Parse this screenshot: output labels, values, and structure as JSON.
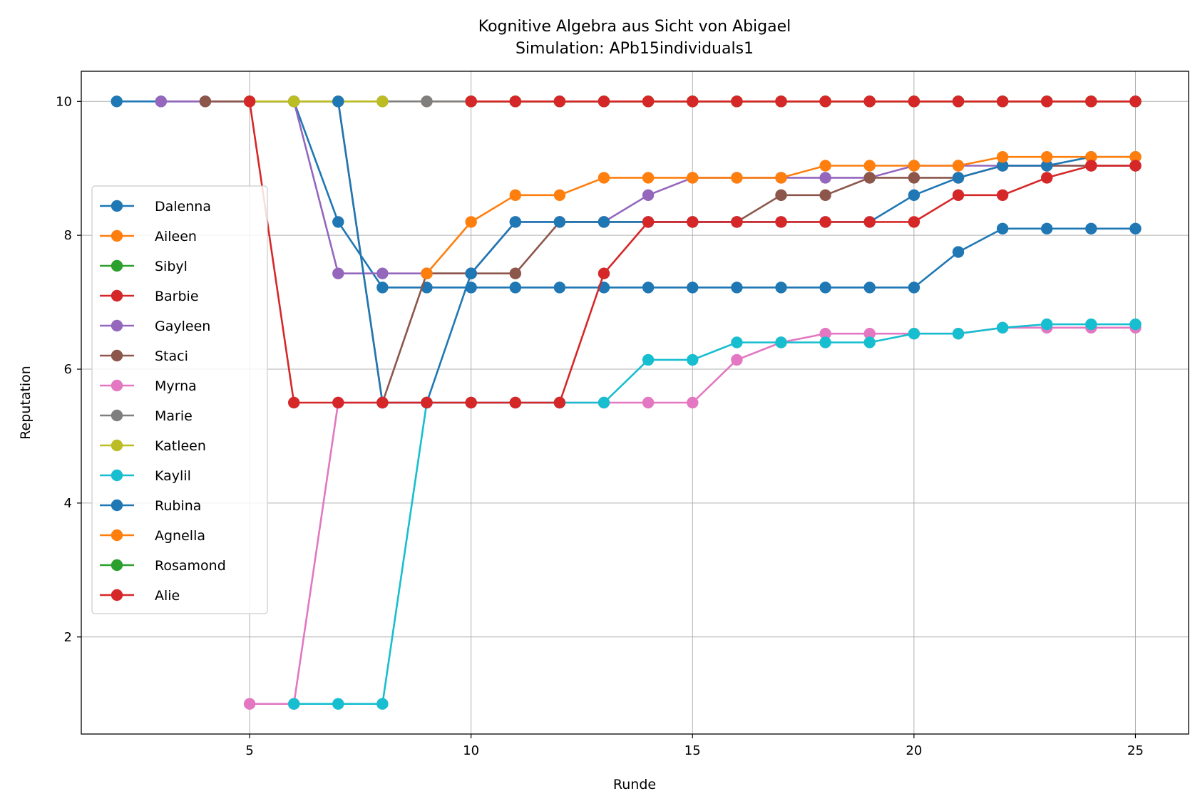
{
  "chart_data": {
    "type": "line",
    "title": "Kognitive Algebra aus Sicht von Abigael",
    "subtitle": "Simulation: APb15individuals1",
    "xlabel": "Runde",
    "ylabel": "Reputation",
    "xlim": [
      1.2,
      26.2
    ],
    "ylim": [
      0.55,
      10.45
    ],
    "xticks": [
      5,
      10,
      15,
      20,
      25
    ],
    "yticks": [
      2,
      4,
      6,
      8,
      10
    ],
    "grid": true,
    "legend_position": "center-left",
    "series": [
      {
        "name": "Dalenna",
        "color": "#1f77b4",
        "points": [
          [
            2,
            10
          ],
          [
            3,
            10
          ],
          [
            4,
            10
          ],
          [
            5,
            10
          ],
          [
            6,
            10
          ],
          [
            7,
            8.2
          ],
          [
            8,
            7.22
          ],
          [
            9,
            7.22
          ],
          [
            10,
            7.22
          ],
          [
            11,
            7.22
          ],
          [
            12,
            7.22
          ],
          [
            13,
            7.22
          ],
          [
            14,
            7.22
          ],
          [
            15,
            7.22
          ],
          [
            16,
            7.22
          ],
          [
            17,
            7.22
          ],
          [
            18,
            7.22
          ],
          [
            19,
            7.22
          ],
          [
            20,
            7.22
          ],
          [
            21,
            7.75
          ],
          [
            22,
            8.1
          ],
          [
            23,
            8.1
          ],
          [
            24,
            8.1
          ],
          [
            25,
            8.1
          ]
        ]
      },
      {
        "name": "Aileen",
        "color": "#ff7f0e",
        "points": [
          [
            9,
            10
          ],
          [
            10,
            10
          ],
          [
            11,
            10
          ],
          [
            12,
            10
          ],
          [
            13,
            10
          ],
          [
            14,
            10
          ],
          [
            15,
            10
          ],
          [
            16,
            10
          ],
          [
            17,
            10
          ],
          [
            18,
            10
          ],
          [
            19,
            10
          ],
          [
            20,
            10
          ],
          [
            21,
            10
          ],
          [
            22,
            10
          ],
          [
            23,
            10
          ],
          [
            24,
            10
          ],
          [
            25,
            10
          ]
        ]
      },
      {
        "name": "Sibyl",
        "color": "#2ca02c",
        "points": [
          [
            10,
            10
          ],
          [
            11,
            10
          ],
          [
            12,
            10
          ],
          [
            13,
            10
          ],
          [
            14,
            10
          ],
          [
            15,
            10
          ],
          [
            16,
            10
          ],
          [
            17,
            10
          ],
          [
            18,
            10
          ],
          [
            19,
            10
          ],
          [
            20,
            10
          ],
          [
            21,
            10
          ],
          [
            22,
            10
          ],
          [
            23,
            10
          ],
          [
            24,
            10
          ],
          [
            25,
            10
          ]
        ]
      },
      {
        "name": "Barbie",
        "color": "#d62728",
        "points": [
          [
            10,
            10
          ],
          [
            11,
            10
          ],
          [
            12,
            10
          ],
          [
            13,
            10
          ],
          [
            14,
            10
          ],
          [
            15,
            10
          ],
          [
            16,
            10
          ],
          [
            17,
            10
          ],
          [
            18,
            10
          ],
          [
            19,
            10
          ],
          [
            20,
            10
          ],
          [
            21,
            10
          ],
          [
            22,
            10
          ],
          [
            23,
            10
          ],
          [
            24,
            10
          ],
          [
            25,
            10
          ]
        ]
      },
      {
        "name": "Gayleen",
        "color": "#9467bd",
        "points": [
          [
            3,
            10
          ],
          [
            4,
            10
          ],
          [
            5,
            10
          ],
          [
            6,
            10
          ],
          [
            7,
            7.43
          ],
          [
            8,
            7.43
          ],
          [
            9,
            7.43
          ],
          [
            10,
            7.43
          ],
          [
            11,
            8.2
          ],
          [
            12,
            8.2
          ],
          [
            13,
            8.2
          ],
          [
            14,
            8.6
          ],
          [
            15,
            8.86
          ],
          [
            16,
            8.86
          ],
          [
            17,
            8.86
          ],
          [
            18,
            8.86
          ],
          [
            19,
            8.86
          ],
          [
            20,
            9.04
          ],
          [
            21,
            9.04
          ],
          [
            22,
            9.04
          ],
          [
            23,
            9.04
          ],
          [
            24,
            9.04
          ],
          [
            25,
            9.04
          ]
        ]
      },
      {
        "name": "Staci",
        "color": "#8c564b",
        "points": [
          [
            4,
            10
          ],
          [
            5,
            10
          ],
          [
            6,
            10
          ],
          [
            7,
            10
          ],
          [
            8,
            5.5
          ],
          [
            9,
            7.43
          ],
          [
            10,
            7.43
          ],
          [
            11,
            7.43
          ],
          [
            12,
            8.2
          ],
          [
            13,
            8.2
          ],
          [
            14,
            8.2
          ],
          [
            15,
            8.2
          ],
          [
            16,
            8.2
          ],
          [
            17,
            8.6
          ],
          [
            18,
            8.6
          ],
          [
            19,
            8.86
          ],
          [
            20,
            8.86
          ],
          [
            21,
            8.86
          ],
          [
            22,
            9.04
          ],
          [
            23,
            9.04
          ],
          [
            24,
            9.04
          ],
          [
            25,
            9.04
          ]
        ]
      },
      {
        "name": "Myrna",
        "color": "#e377c2",
        "points": [
          [
            5,
            1
          ],
          [
            6,
            1
          ],
          [
            7,
            5.5
          ],
          [
            8,
            5.5
          ],
          [
            9,
            5.5
          ],
          [
            10,
            5.5
          ],
          [
            11,
            5.5
          ],
          [
            12,
            5.5
          ],
          [
            13,
            5.5
          ],
          [
            14,
            5.5
          ],
          [
            15,
            5.5
          ],
          [
            16,
            6.14
          ],
          [
            17,
            6.4
          ],
          [
            18,
            6.53
          ],
          [
            19,
            6.53
          ],
          [
            20,
            6.53
          ],
          [
            21,
            6.53
          ],
          [
            22,
            6.62
          ],
          [
            23,
            6.62
          ],
          [
            24,
            6.62
          ],
          [
            25,
            6.62
          ]
        ]
      },
      {
        "name": "Marie",
        "color": "#7f7f7f",
        "points": [
          [
            6,
            10
          ],
          [
            7,
            10
          ],
          [
            8,
            10
          ],
          [
            9,
            10
          ],
          [
            10,
            10
          ],
          [
            11,
            10
          ],
          [
            12,
            10
          ],
          [
            13,
            10
          ],
          [
            14,
            10
          ],
          [
            15,
            10
          ],
          [
            16,
            10
          ],
          [
            17,
            10
          ],
          [
            18,
            10
          ],
          [
            19,
            10
          ],
          [
            20,
            10
          ],
          [
            21,
            10
          ],
          [
            22,
            10
          ],
          [
            23,
            10
          ],
          [
            24,
            10
          ],
          [
            25,
            10
          ]
        ]
      },
      {
        "name": "Katleen",
        "color": "#bcbd22",
        "points": [
          [
            5,
            10
          ],
          [
            6,
            10
          ],
          [
            7,
            10
          ],
          [
            8,
            10
          ]
        ]
      },
      {
        "name": "Kaylil",
        "color": "#17becf",
        "points": [
          [
            6,
            1
          ],
          [
            7,
            1
          ],
          [
            8,
            1
          ],
          [
            9,
            5.5
          ],
          [
            10,
            5.5
          ],
          [
            11,
            5.5
          ],
          [
            12,
            5.5
          ],
          [
            13,
            5.5
          ],
          [
            14,
            6.14
          ],
          [
            15,
            6.14
          ],
          [
            16,
            6.4
          ],
          [
            17,
            6.4
          ],
          [
            18,
            6.4
          ],
          [
            19,
            6.4
          ],
          [
            20,
            6.53
          ],
          [
            21,
            6.53
          ],
          [
            22,
            6.62
          ],
          [
            23,
            6.67
          ],
          [
            24,
            6.67
          ],
          [
            25,
            6.67
          ]
        ]
      },
      {
        "name": "Rubina",
        "color": "#1f77b4",
        "points": [
          [
            7,
            10
          ],
          [
            8,
            5.5
          ],
          [
            9,
            5.5
          ],
          [
            10,
            7.43
          ],
          [
            11,
            8.2
          ],
          [
            12,
            8.2
          ],
          [
            13,
            8.2
          ],
          [
            14,
            8.2
          ],
          [
            15,
            8.2
          ],
          [
            16,
            8.2
          ],
          [
            17,
            8.2
          ],
          [
            18,
            8.2
          ],
          [
            19,
            8.2
          ],
          [
            20,
            8.6
          ],
          [
            21,
            8.86
          ],
          [
            22,
            9.04
          ],
          [
            23,
            9.04
          ],
          [
            24,
            9.17
          ],
          [
            25,
            9.17
          ]
        ]
      },
      {
        "name": "Agnella",
        "color": "#ff7f0e",
        "points": [
          [
            9,
            7.43
          ],
          [
            10,
            8.2
          ],
          [
            11,
            8.6
          ],
          [
            12,
            8.6
          ],
          [
            13,
            8.86
          ],
          [
            14,
            8.86
          ],
          [
            15,
            8.86
          ],
          [
            16,
            8.86
          ],
          [
            17,
            8.86
          ],
          [
            18,
            9.04
          ],
          [
            19,
            9.04
          ],
          [
            20,
            9.04
          ],
          [
            21,
            9.04
          ],
          [
            22,
            9.17
          ],
          [
            23,
            9.17
          ],
          [
            24,
            9.17
          ],
          [
            25,
            9.17
          ]
        ]
      },
      {
        "name": "Rosamond",
        "color": "#2ca02c",
        "points": [
          [
            10,
            10
          ],
          [
            11,
            10
          ],
          [
            12,
            10
          ],
          [
            13,
            10
          ],
          [
            14,
            10
          ],
          [
            15,
            10
          ],
          [
            16,
            10
          ],
          [
            17,
            10
          ],
          [
            18,
            10
          ],
          [
            19,
            10
          ],
          [
            20,
            10
          ],
          [
            21,
            10
          ],
          [
            22,
            10
          ],
          [
            23,
            10
          ],
          [
            24,
            10
          ],
          [
            25,
            10
          ]
        ]
      },
      {
        "name": "Alie",
        "color": "#d62728",
        "points": [
          [
            5,
            10
          ],
          [
            6,
            5.5
          ],
          [
            7,
            5.5
          ],
          [
            8,
            5.5
          ],
          [
            9,
            5.5
          ],
          [
            10,
            5.5
          ],
          [
            11,
            5.5
          ],
          [
            12,
            5.5
          ],
          [
            13,
            7.43
          ],
          [
            14,
            8.2
          ],
          [
            15,
            8.2
          ],
          [
            16,
            8.2
          ],
          [
            17,
            8.2
          ],
          [
            18,
            8.2
          ],
          [
            19,
            8.2
          ],
          [
            20,
            8.2
          ],
          [
            21,
            8.6
          ],
          [
            22,
            8.6
          ],
          [
            23,
            8.86
          ],
          [
            24,
            9.04
          ],
          [
            25,
            9.04
          ]
        ]
      },
      {
        "name": "Alie",
        "color": "#d62728",
        "points": [
          [
            10,
            10
          ],
          [
            11,
            10
          ],
          [
            12,
            10
          ],
          [
            13,
            10
          ],
          [
            14,
            10
          ],
          [
            15,
            10
          ],
          [
            16,
            10
          ],
          [
            17,
            10
          ],
          [
            18,
            10
          ],
          [
            19,
            10
          ],
          [
            20,
            10
          ],
          [
            21,
            10
          ],
          [
            22,
            10
          ],
          [
            23,
            10
          ],
          [
            24,
            10
          ],
          [
            25,
            10
          ]
        ]
      }
    ],
    "legend_entries": [
      "Dalenna",
      "Aileen",
      "Sibyl",
      "Barbie",
      "Gayleen",
      "Staci",
      "Myrna",
      "Marie",
      "Katleen",
      "Kaylil",
      "Rubina",
      "Agnella",
      "Rosamond",
      "Alie"
    ],
    "legend_colors": [
      "#1f77b4",
      "#ff7f0e",
      "#2ca02c",
      "#d62728",
      "#9467bd",
      "#8c564b",
      "#e377c2",
      "#7f7f7f",
      "#bcbd22",
      "#17becf",
      "#1f77b4",
      "#ff7f0e",
      "#2ca02c",
      "#d62728"
    ]
  }
}
